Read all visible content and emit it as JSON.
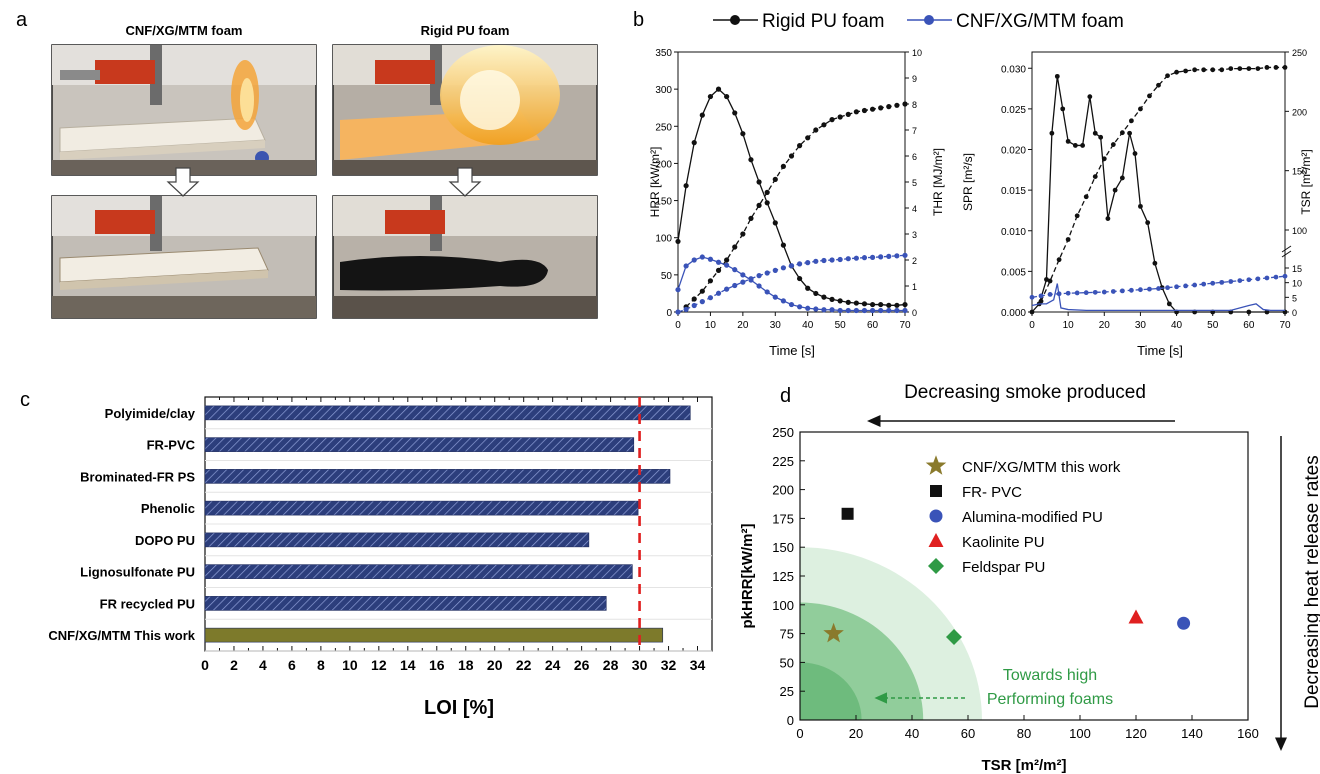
{
  "panel_labels": {
    "a": "a",
    "b": "b",
    "c": "c",
    "d": "d"
  },
  "panel_a": {
    "title_left": "CNF/XG/MTM foam",
    "title_right": "Rigid PU foam",
    "photos": [
      {
        "name": "cnf-burning-photo"
      },
      {
        "name": "pu-burning-photo"
      },
      {
        "name": "cnf-after-photo"
      },
      {
        "name": "pu-after-photo"
      }
    ]
  },
  "colors": {
    "black": "#111111",
    "blue": "#3a53b8",
    "hatch": "#2c3e7c",
    "olive": "#7d7a2b",
    "red": "#e02020",
    "green": "#2f9a45",
    "olive_star": "#8a7a2c"
  },
  "chart_data": [
    {
      "id": "b-left",
      "type": "line",
      "legend": [
        "Rigid PU foam",
        "CNF/XG/MTM foam"
      ],
      "legend_position": "top",
      "xlabel": "Time [s]",
      "ylabel": "HRR [kW/m²]",
      "y2label": "THR [MJ/m²]",
      "xlim": [
        0,
        70
      ],
      "ylim": [
        0,
        350
      ],
      "y2lim": [
        0,
        10
      ],
      "xticks": [
        "0",
        "10",
        "20",
        "30",
        "40",
        "50",
        "60",
        "70"
      ],
      "yticks": [
        "0",
        "50",
        "100",
        "150",
        "200",
        "250",
        "300",
        "350"
      ],
      "y2ticks": [
        "0",
        "1",
        "2",
        "3",
        "4",
        "5",
        "6",
        "7",
        "8",
        "9",
        "10"
      ],
      "series": [
        {
          "name": "Rigid PU foam",
          "kind": "HRR",
          "color": "#111111",
          "x": [
            0,
            2.5,
            5,
            7.5,
            10,
            12.5,
            15,
            17.5,
            20,
            22.5,
            25,
            27.5,
            30,
            32.5,
            35,
            37.5,
            40,
            42.5,
            45,
            47.5,
            50,
            52.5,
            55,
            57.5,
            60,
            62.5,
            65,
            67.5,
            70
          ],
          "y": [
            95,
            170,
            228,
            265,
            290,
            300,
            290,
            268,
            240,
            205,
            175,
            147,
            120,
            90,
            62,
            45,
            32,
            25,
            20,
            17,
            15,
            13,
            12,
            11,
            10,
            10,
            9,
            9,
            10
          ]
        },
        {
          "name": "Rigid PU foam",
          "kind": "THR",
          "color": "#111111",
          "x": [
            2.5,
            5,
            7.5,
            10,
            12.5,
            15,
            17.5,
            20,
            22.5,
            25,
            27.5,
            30,
            32.5,
            35,
            37.5,
            40,
            42.5,
            45,
            47.5,
            50,
            52.5,
            55,
            57.5,
            60,
            62.5,
            65,
            67.5,
            70
          ],
          "y": [
            0.2,
            0.5,
            0.8,
            1.2,
            1.6,
            2.0,
            2.5,
            3.0,
            3.6,
            4.1,
            4.6,
            5.1,
            5.6,
            6.0,
            6.4,
            6.7,
            7.0,
            7.2,
            7.4,
            7.5,
            7.6,
            7.7,
            7.75,
            7.8,
            7.85,
            7.9,
            7.95,
            8.0
          ]
        },
        {
          "name": "CNF/XG/MTM foam",
          "kind": "HRR",
          "color": "#3a53b8",
          "x": [
            0,
            2.5,
            5,
            7.5,
            10,
            12.5,
            15,
            17.5,
            20,
            22.5,
            25,
            27.5,
            30,
            32.5,
            35,
            37.5,
            40,
            42.5,
            45,
            47.5,
            50,
            52.5,
            55,
            57.5,
            60,
            62.5,
            65,
            67.5,
            70
          ],
          "y": [
            30,
            62,
            70,
            74,
            71,
            67,
            63,
            57,
            50,
            43,
            35,
            27,
            20,
            15,
            10,
            7,
            5,
            4,
            3,
            3,
            2,
            2,
            2,
            2,
            2,
            2,
            2,
            2,
            2
          ]
        },
        {
          "name": "CNF/XG/MTM foam",
          "kind": "THR",
          "color": "#3a53b8",
          "x": [
            0,
            2.5,
            5,
            7.5,
            10,
            12.5,
            15,
            17.5,
            20,
            22.5,
            25,
            27.5,
            30,
            32.5,
            35,
            37.5,
            40,
            42.5,
            45,
            47.5,
            50,
            52.5,
            55,
            57.5,
            60,
            62.5,
            65,
            67.5,
            70
          ],
          "y": [
            0,
            0.1,
            0.25,
            0.4,
            0.55,
            0.72,
            0.88,
            1.02,
            1.15,
            1.28,
            1.4,
            1.5,
            1.6,
            1.7,
            1.78,
            1.85,
            1.9,
            1.95,
            1.98,
            2.0,
            2.02,
            2.05,
            2.07,
            2.09,
            2.1,
            2.12,
            2.14,
            2.16,
            2.18
          ]
        }
      ]
    },
    {
      "id": "b-right",
      "type": "line",
      "xlabel": "Time [s]",
      "ylabel": "SPR [m²/s]",
      "y2label": "TSR [m²/m²]",
      "xlim": [
        0,
        70
      ],
      "ylim": [
        0,
        0.032
      ],
      "xticks": [
        "0",
        "10",
        "20",
        "30",
        "40",
        "50",
        "60",
        "70"
      ],
      "yticks": [
        "0.000",
        "0.005",
        "0.010",
        "0.015",
        "0.020",
        "0.025",
        "0.030"
      ],
      "y2ticks_upper": [
        "100",
        "150",
        "200",
        "250"
      ],
      "y2ticks_lower": [
        "0",
        "5",
        "10",
        "15"
      ],
      "series": [
        {
          "name": "Rigid PU foam",
          "kind": "SPR",
          "color": "#111111",
          "x": [
            0,
            2,
            4,
            5.5,
            7,
            8.5,
            10,
            12,
            14,
            16,
            17.5,
            19,
            21,
            23,
            25,
            27,
            28.5,
            30,
            32,
            34,
            36,
            38,
            40,
            45,
            50,
            55,
            60,
            65,
            70
          ],
          "y": [
            0,
            0.001,
            0.004,
            0.022,
            0.029,
            0.025,
            0.021,
            0.0205,
            0.0205,
            0.0265,
            0.022,
            0.0215,
            0.0115,
            0.015,
            0.0165,
            0.022,
            0.0195,
            0.013,
            0.011,
            0.006,
            0.003,
            0.001,
            0,
            0,
            0,
            0,
            0,
            0,
            0
          ]
        },
        {
          "name": "Rigid PU foam",
          "kind": "TSR",
          "color": "#111111",
          "x": [
            2.5,
            5,
            7.5,
            10,
            12.5,
            15,
            17.5,
            20,
            22.5,
            25,
            27.5,
            30,
            32.5,
            35,
            37.5,
            40,
            42.5,
            45,
            47.5,
            50,
            52.5,
            55,
            57.5,
            60,
            62.5,
            65,
            67.5,
            70
          ],
          "y": [
            40,
            57,
            75,
            92,
            112,
            128,
            145,
            160,
            172,
            182,
            192,
            202,
            213,
            222,
            230,
            233,
            234,
            235,
            235,
            235,
            235,
            236,
            236,
            236,
            236,
            237,
            237,
            237
          ]
        },
        {
          "name": "CNF/XG/MTM foam",
          "kind": "SPR",
          "color": "#3a53b8",
          "x": [
            0,
            2,
            4,
            6,
            7,
            8,
            10,
            15,
            20,
            25,
            30,
            35,
            40,
            45,
            50,
            55,
            60,
            62,
            64,
            66,
            68,
            70
          ],
          "y": [
            0.0008,
            0.001,
            0.001,
            0.0015,
            0.0035,
            0.0005,
            0.0003,
            0.0002,
            0.0002,
            0.0002,
            0.0002,
            0.0002,
            0.0002,
            0.0002,
            0.0002,
            0.0002,
            0.0008,
            0.001,
            0.0003,
            0.0002,
            0.0002,
            0.0002
          ]
        },
        {
          "name": "CNF/XG/MTM foam",
          "kind": "TSR",
          "color": "#3a53b8",
          "x": [
            0,
            2.5,
            5,
            7.5,
            10,
            12.5,
            15,
            17.5,
            20,
            22.5,
            25,
            27.5,
            30,
            32.5,
            35,
            37.5,
            40,
            42.5,
            45,
            47.5,
            50,
            52.5,
            55,
            57.5,
            60,
            62.5,
            65,
            67.5,
            70
          ],
          "y": [
            5,
            5.5,
            6,
            6.2,
            6.4,
            6.5,
            6.6,
            6.7,
            6.8,
            7,
            7.2,
            7.4,
            7.6,
            7.8,
            8,
            8.3,
            8.6,
            8.9,
            9.2,
            9.5,
            9.8,
            10.1,
            10.4,
            10.7,
            11,
            11.3,
            11.6,
            11.9,
            12.2
          ]
        }
      ]
    },
    {
      "id": "c",
      "type": "bar",
      "orientation": "horizontal",
      "xlabel": "LOI [%]",
      "xlim": [
        0,
        35
      ],
      "xticks": [
        "0",
        "2",
        "4",
        "6",
        "8",
        "10",
        "12",
        "14",
        "16",
        "18",
        "20",
        "22",
        "24",
        "26",
        "28",
        "30",
        "32",
        "34"
      ],
      "reference_line": 30,
      "categories": [
        "Polyimide/clay",
        "FR-PVC",
        "Brominated-FR PS",
        "Phenolic",
        "DOPO PU",
        "Lignosulfonate PU",
        "FR recycled PU",
        "CNF/XG/MTM This work"
      ],
      "values": [
        33.5,
        29.6,
        32.1,
        29.9,
        26.5,
        29.5,
        27.7,
        31.6
      ]
    },
    {
      "id": "d",
      "type": "scatter",
      "xlabel": "TSR [m²/m²]",
      "ylabel": "pkHRR[kW/m²]",
      "xlim": [
        0,
        160
      ],
      "ylim": [
        0,
        250
      ],
      "xticks": [
        "0",
        "20",
        "40",
        "60",
        "80",
        "100",
        "120",
        "140",
        "160"
      ],
      "yticks": [
        "0",
        "25",
        "50",
        "75",
        "100",
        "125",
        "150",
        "175",
        "200",
        "225",
        "250"
      ],
      "legend_position": "top-right",
      "series": [
        {
          "name": "CNF/XG/MTM this work",
          "marker": "star",
          "color": "#8a7a2c",
          "x": [
            12
          ],
          "y": [
            75
          ]
        },
        {
          "name": "FR- PVC",
          "marker": "square",
          "color": "#111111",
          "x": [
            17
          ],
          "y": [
            179
          ]
        },
        {
          "name": "Alumina-modified PU",
          "marker": "circle",
          "color": "#3a53b8",
          "x": [
            137
          ],
          "y": [
            84
          ]
        },
        {
          "name": "Kaolinite PU",
          "marker": "triangle",
          "color": "#e02020",
          "x": [
            120
          ],
          "y": [
            89
          ]
        },
        {
          "name": "Feldspar PU",
          "marker": "diamond",
          "color": "#2f9a45",
          "x": [
            55
          ],
          "y": [
            72
          ]
        }
      ],
      "annotations": {
        "top_arrow": "Decreasing smoke produced",
        "right_arrow": "Decreasing heat release rates",
        "inner_1": "Towards high",
        "inner_2": "Performing foams"
      }
    }
  ]
}
